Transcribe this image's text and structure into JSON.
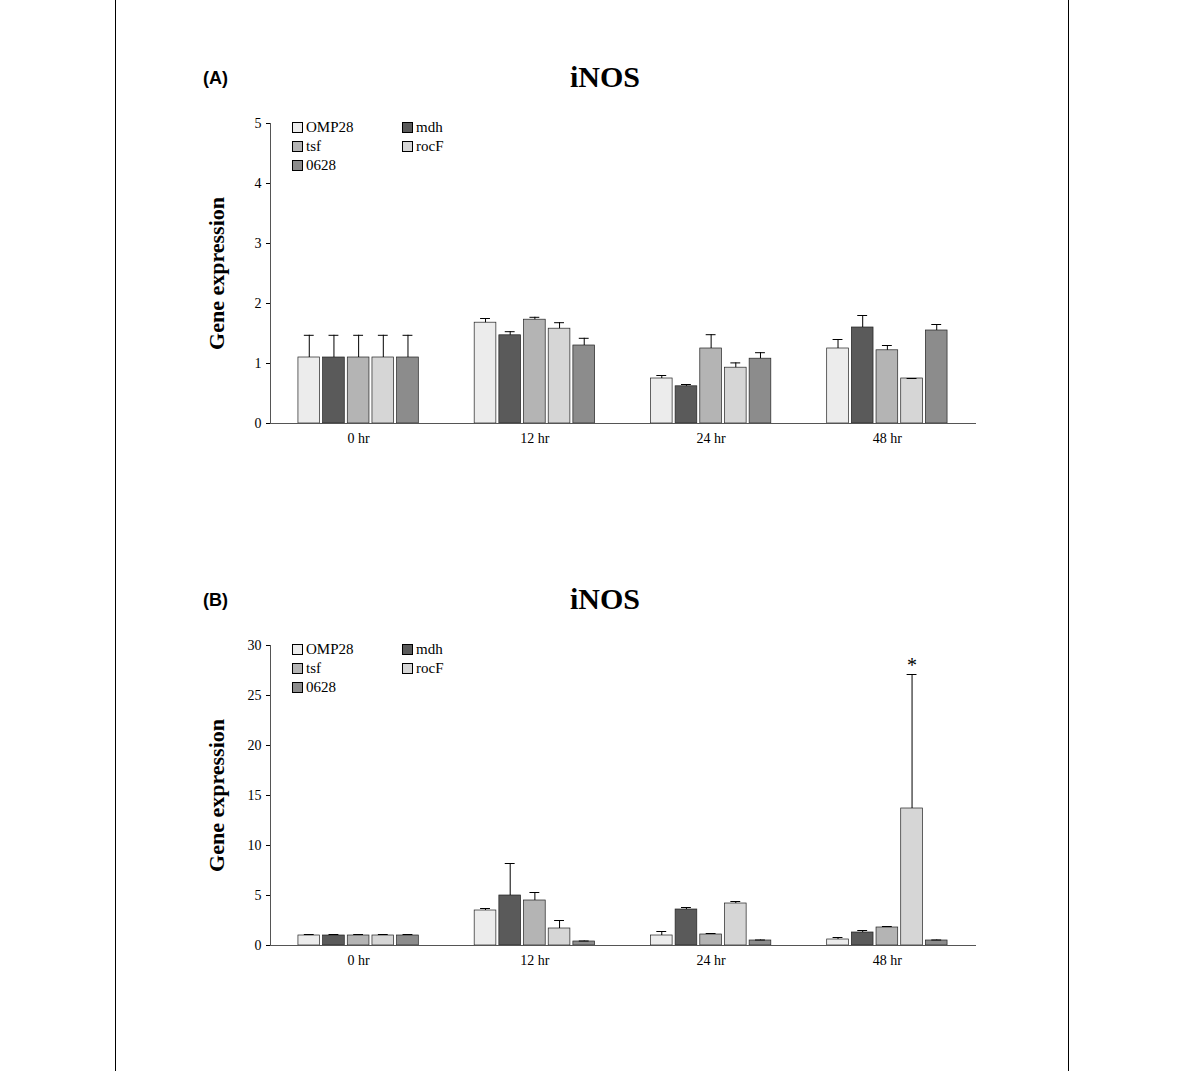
{
  "chart_data": [
    {
      "type": "bar",
      "panel_label": "(A)",
      "title": "iNOS",
      "y_label": "Gene expression",
      "categories": [
        "0 hr",
        "12 hr",
        "24 hr",
        "48 hr"
      ],
      "ylim": [
        0,
        5
      ],
      "yticks": [
        0,
        1,
        2,
        3,
        4,
        5
      ],
      "grid": false,
      "legend": "top-left",
      "series": [
        {
          "name": "OMP28",
          "color": "#ececec",
          "values": [
            1.1,
            1.68,
            0.75,
            1.25
          ],
          "errors": [
            0.37,
            0.07,
            0.05,
            0.15
          ]
        },
        {
          "name": "mdh",
          "color": "#5a5a5a",
          "values": [
            1.1,
            1.47,
            0.62,
            1.6
          ],
          "errors": [
            0.37,
            0.06,
            0.03,
            0.2
          ]
        },
        {
          "name": "tsf",
          "color": "#b4b4b4",
          "values": [
            1.1,
            1.73,
            1.25,
            1.22
          ],
          "errors": [
            0.37,
            0.04,
            0.23,
            0.08
          ]
        },
        {
          "name": "rocF",
          "color": "#d6d6d6",
          "values": [
            1.1,
            1.58,
            0.93,
            0.75
          ],
          "errors": [
            0.37,
            0.1,
            0.08,
            0
          ]
        },
        {
          "name": "0628",
          "color": "#8c8c8c",
          "values": [
            1.1,
            1.3,
            1.08,
            1.55
          ],
          "errors": [
            0.37,
            0.12,
            0.1,
            0.1
          ]
        }
      ]
    },
    {
      "type": "bar",
      "panel_label": "(B)",
      "title": "iNOS",
      "y_label": "Gene expression",
      "categories": [
        "0 hr",
        "12 hr",
        "24 hr",
        "48 hr"
      ],
      "ylim": [
        0,
        30
      ],
      "yticks": [
        0,
        5,
        10,
        15,
        20,
        25,
        30
      ],
      "grid": false,
      "legend": "top-left",
      "series": [
        {
          "name": "OMP28",
          "color": "#ececec",
          "values": [
            1.0,
            3.5,
            1.0,
            0.6
          ],
          "errors": [
            0.1,
            0.2,
            0.4,
            0.2
          ]
        },
        {
          "name": "mdh",
          "color": "#5a5a5a",
          "values": [
            1.0,
            5.0,
            3.6,
            1.3
          ],
          "errors": [
            0.1,
            3.2,
            0.2,
            0.2
          ]
        },
        {
          "name": "tsf",
          "color": "#b4b4b4",
          "values": [
            1.0,
            4.5,
            1.1,
            1.8
          ],
          "errors": [
            0.1,
            0.8,
            0.1,
            0.1
          ]
        },
        {
          "name": "rocF",
          "color": "#d6d6d6",
          "values": [
            1.0,
            1.7,
            4.2,
            13.7
          ],
          "errors": [
            0.1,
            0.8,
            0.2,
            13.4
          ]
        },
        {
          "name": "0628",
          "color": "#8c8c8c",
          "values": [
            1.0,
            0.4,
            0.5,
            0.5
          ],
          "errors": [
            0.1,
            0.05,
            0.05,
            0.05
          ]
        }
      ],
      "annotations": [
        {
          "text": "*",
          "category": "48 hr",
          "series": "rocF"
        }
      ]
    }
  ]
}
